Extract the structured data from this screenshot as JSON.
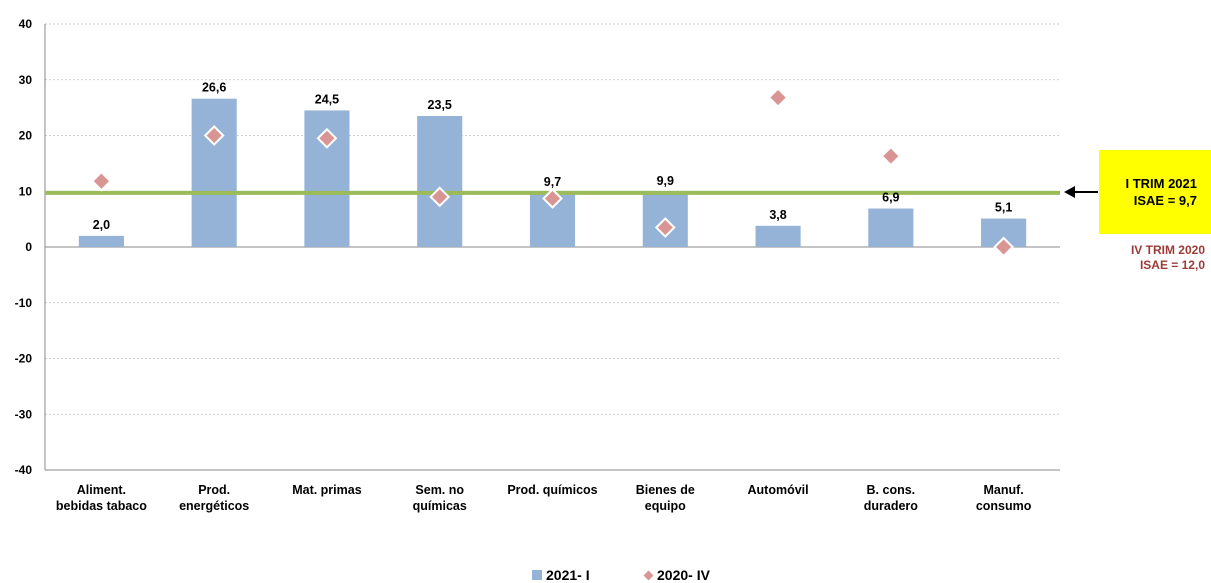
{
  "chart_data": {
    "type": "bar",
    "categories": [
      [
        "Aliment.",
        "bebidas tabaco"
      ],
      [
        "Prod.",
        "energéticos"
      ],
      [
        "Mat. primas"
      ],
      [
        "Sem. no",
        "químicas"
      ],
      [
        "Prod. químicos"
      ],
      [
        "Bienes de",
        "equipo"
      ],
      [
        "Automóvil"
      ],
      [
        "B. cons.",
        "duradero"
      ],
      [
        "Manuf.",
        "consumo"
      ]
    ],
    "series": [
      {
        "name": "2021- I",
        "type": "bar",
        "color": "#95b3d7",
        "values": [
          2.0,
          26.6,
          24.5,
          23.5,
          9.7,
          9.9,
          3.8,
          6.9,
          5.1
        ],
        "labels": [
          "2,0",
          "26,6",
          "24,5",
          "23,5",
          "9,7",
          "9,9",
          "3,8",
          "6,9",
          "5,1"
        ]
      },
      {
        "name": "2020- IV",
        "type": "scatter",
        "marker": "diamond",
        "color": "#d99594",
        "values": [
          11.8,
          20.0,
          19.5,
          9.0,
          8.7,
          3.5,
          26.8,
          16.3,
          0.0
        ]
      }
    ],
    "ylim": [
      -40,
      40
    ],
    "yticks": [
      -40,
      -30,
      -20,
      -10,
      0,
      10,
      20,
      30,
      40
    ],
    "grid": true,
    "reference_line": {
      "value": 9.7,
      "color": "#9bbb59"
    },
    "legend_position": "bottom-center"
  },
  "annotations": {
    "current": {
      "line1": "I TRIM 2021",
      "line2": "ISAE = 9,7"
    },
    "previous": {
      "line1": "IV TRIM 2020",
      "line2": "ISAE = 12,0"
    }
  }
}
